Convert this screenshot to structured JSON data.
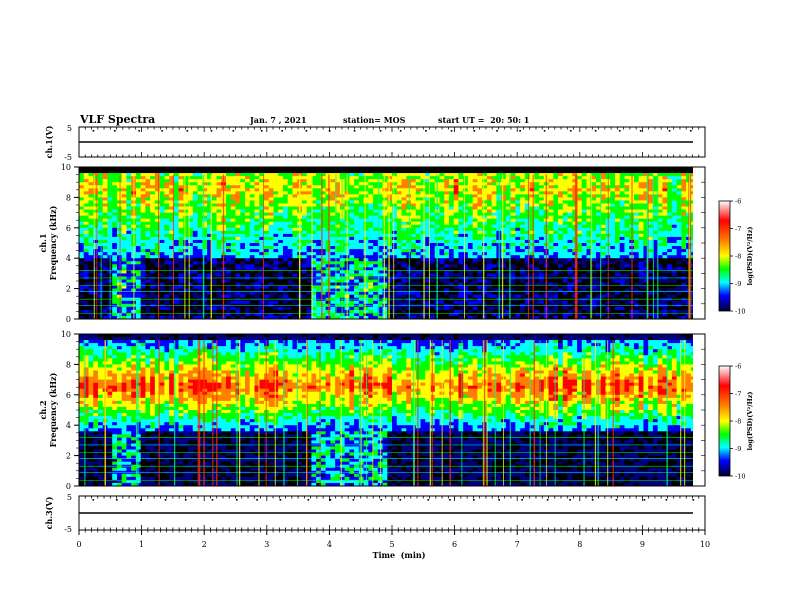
{
  "header": {
    "title": "VLF Spectra",
    "date": "Jan. 7 , 2021",
    "station": "station= MOS",
    "start_ut": "start UT =  20: 50: 1"
  },
  "chart_data": [
    {
      "type": "line",
      "panel": "ch1-waveform",
      "ylabel": "ch.1(V)",
      "ylim": [
        -5,
        5
      ],
      "y_ticks": [
        "5",
        "-5"
      ],
      "x": [
        0,
        10
      ],
      "series": [
        {
          "values": [
            0,
            0
          ]
        }
      ]
    },
    {
      "type": "heatmap",
      "panel": "ch1-spectrogram",
      "ylabel": "ch.1\nFrequency (kHz)",
      "ylim": [
        0,
        10
      ],
      "y_ticks": [
        "0",
        "2",
        "4",
        "6",
        "8",
        "10"
      ],
      "xlim": [
        0,
        9.85
      ],
      "colorbar": {
        "label": "log(PSD)(V²/Hz)",
        "range": [
          -10,
          -6
        ],
        "ticks": [
          "-6",
          "-7",
          "-8",
          "-9",
          "-10"
        ]
      },
      "dominant_band_khz": [
        4,
        9.5
      ],
      "quiet_band_khz": [
        0,
        4
      ],
      "enhanced_intervals_min": [
        [
          0.5,
          1.0
        ],
        [
          3.7,
          4.9
        ]
      ]
    },
    {
      "type": "heatmap",
      "panel": "ch2-spectrogram",
      "ylabel": "ch.2\nFrequency (kHz)",
      "ylim": [
        0,
        10
      ],
      "y_ticks": [
        "0",
        "2",
        "4",
        "6",
        "8",
        "10"
      ],
      "xlim": [
        0,
        9.85
      ],
      "colorbar": {
        "label": "log(PSD)(V²/Hz)",
        "range": [
          -10,
          -6
        ],
        "ticks": [
          "-6",
          "-7",
          "-8",
          "-9",
          "-10"
        ]
      },
      "peak_band_khz": [
        5,
        8
      ],
      "dominant_band_khz": [
        4,
        9.5
      ],
      "enhanced_intervals_min": [
        [
          0.5,
          1.0
        ],
        [
          3.7,
          4.9
        ]
      ]
    },
    {
      "type": "line",
      "panel": "ch3-waveform",
      "ylabel": "ch.3(V)",
      "ylim": [
        -5,
        5
      ],
      "y_ticks": [
        "5",
        "-5"
      ],
      "x": [
        0,
        10
      ],
      "series": [
        {
          "values": [
            0,
            0
          ]
        }
      ]
    }
  ],
  "x_axis": {
    "label": "Time  (min)",
    "ticks": [
      "0",
      "1",
      "2",
      "3",
      "4",
      "5",
      "6",
      "7",
      "8",
      "9",
      "10"
    ],
    "range": [
      0,
      10
    ]
  },
  "colors": {
    "spectrum": [
      "#000000",
      "#00007a",
      "#0000ff",
      "#00ffff",
      "#00ff00",
      "#ffff00",
      "#ff8000",
      "#ff0000"
    ],
    "colorbar": [
      "#ff0000",
      "#ff8000",
      "#ffff00",
      "#00ff00",
      "#00ffff",
      "#0000ff",
      "#000080",
      "#000000"
    ]
  }
}
